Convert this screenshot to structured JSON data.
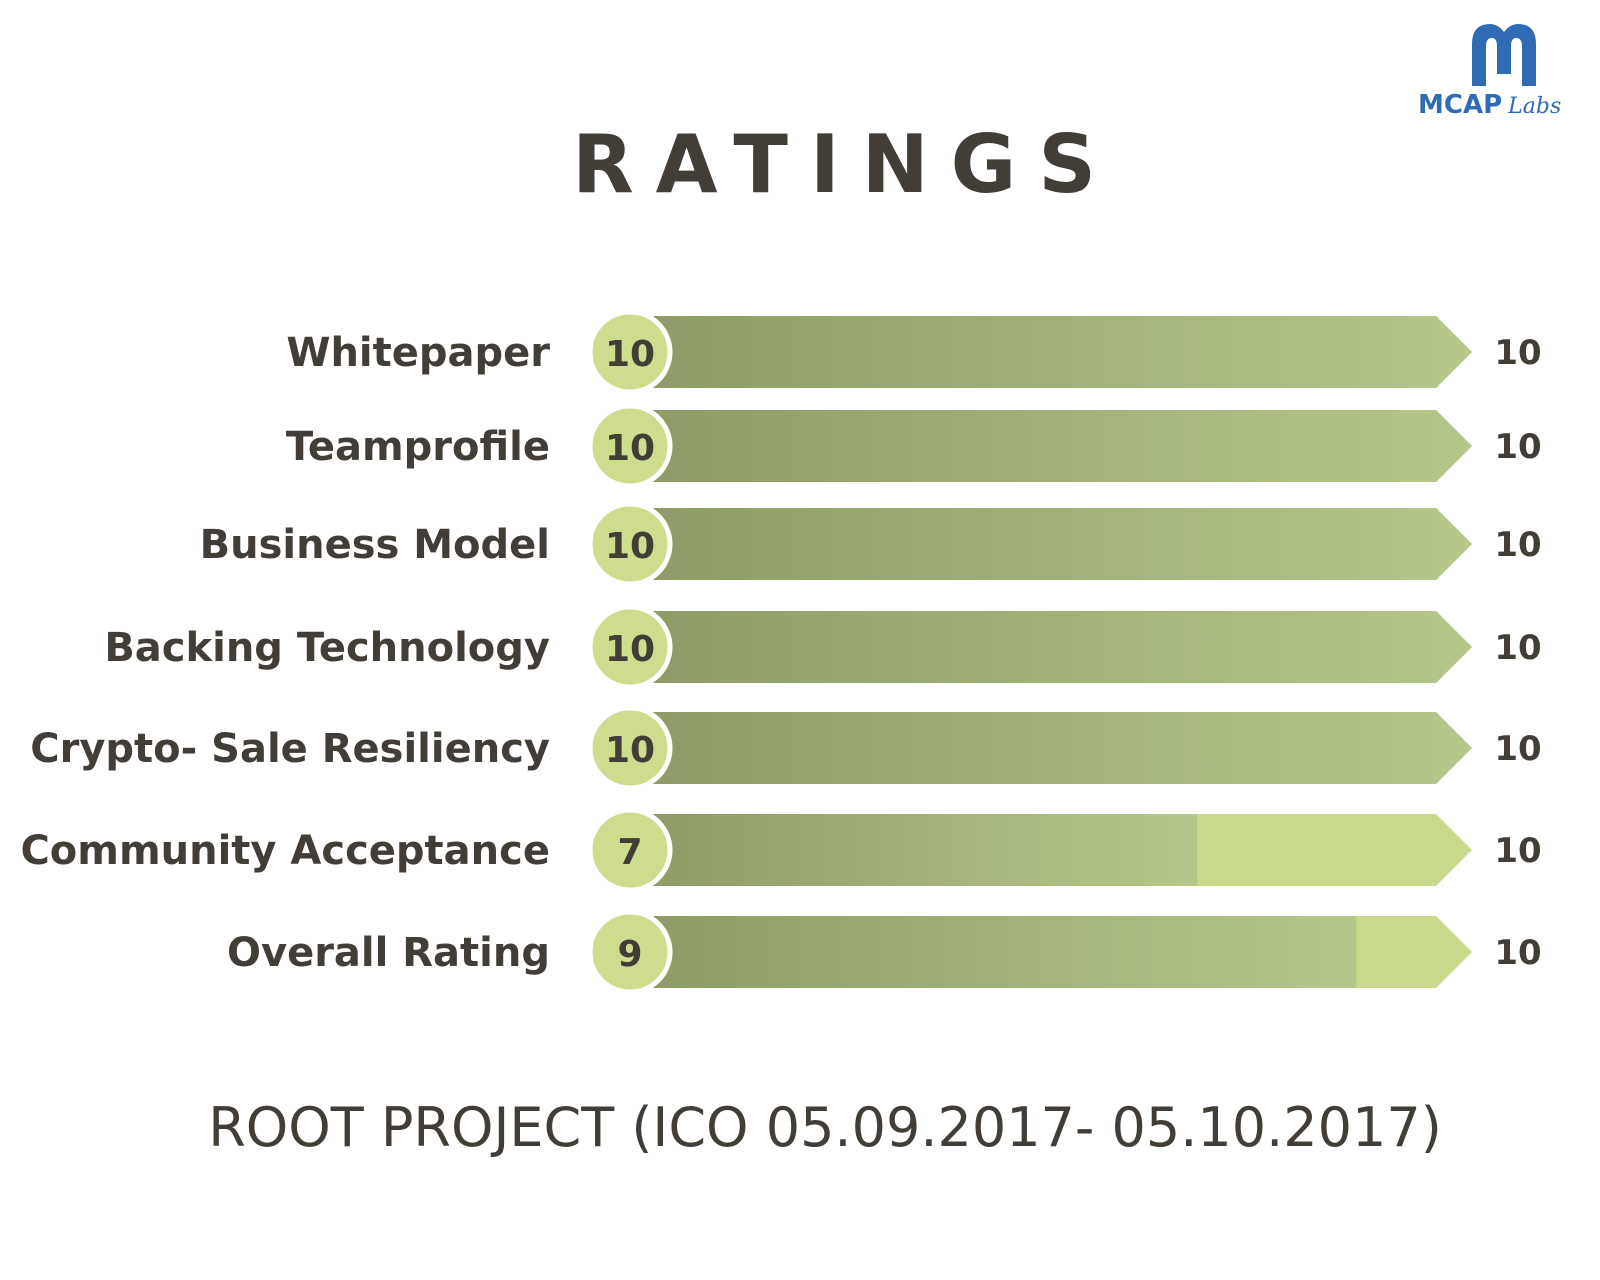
{
  "logo": {
    "brand": "MCAP",
    "sub": "Labs",
    "color": "#2f6cb3"
  },
  "chart_data": {
    "type": "bar",
    "orientation": "horizontal",
    "title": "RATINGS",
    "categories": [
      "Whitepaper",
      "Teamprofile",
      "Business Model",
      "Backing Technology",
      "Crypto- Sale Resiliency",
      "Community Acceptance",
      "Overall Rating"
    ],
    "values": [
      10,
      10,
      10,
      10,
      10,
      7,
      9
    ],
    "max_labels": [
      10,
      10,
      10,
      10,
      10,
      10,
      10
    ],
    "xlim": [
      0,
      10
    ],
    "grid": false,
    "legend": "none",
    "colors": {
      "fill_dark": "#8e9b66",
      "fill_light": "#b5c78a",
      "track": "#c9d98b",
      "circle": "#cedc8d",
      "text": "#433d38"
    }
  },
  "footer": "ROOT PROJECT (ICO 05.09.2017- 05.10.2017)"
}
